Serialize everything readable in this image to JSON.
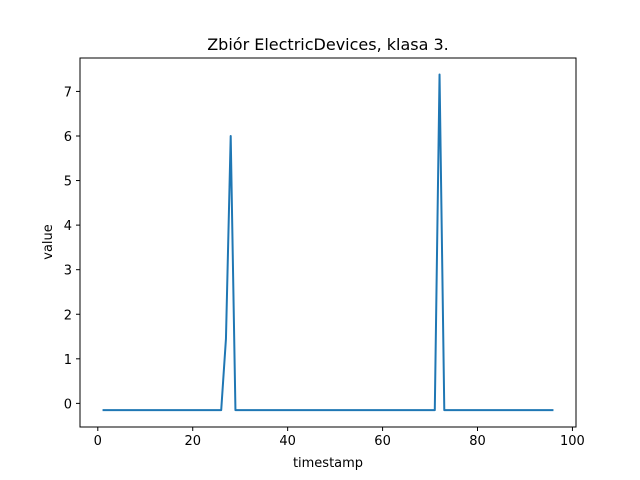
{
  "chart_data": {
    "type": "line",
    "title": "Zbiór ElectricDevices, klasa 3.",
    "xlabel": "timestamp",
    "ylabel": "value",
    "xlim": [
      -3.75,
      100.75
    ],
    "ylim": [
      -0.53,
      7.75
    ],
    "xticks": [
      0,
      20,
      40,
      60,
      80,
      100
    ],
    "yticks": [
      0,
      1,
      2,
      3,
      4,
      5,
      6,
      7
    ],
    "grid": false,
    "series": [
      {
        "color": "#1f77b4",
        "x": [
          1,
          26,
          27,
          28,
          29,
          71,
          72,
          73,
          96
        ],
        "y": [
          -0.15,
          -0.15,
          1.45,
          6.0,
          -0.15,
          -0.15,
          7.38,
          -0.15,
          -0.15
        ]
      }
    ]
  }
}
